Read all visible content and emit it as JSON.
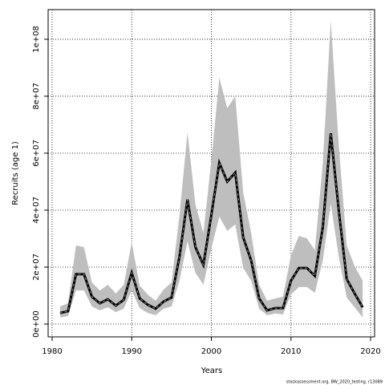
{
  "chart_data": {
    "type": "line",
    "xlabel": "Years",
    "ylabel": "Recruits (age 1)",
    "footnote": "stockassessment.org, BW_2020_testing, r13089",
    "x": [
      1981,
      1982,
      1983,
      1984,
      1985,
      1986,
      1987,
      1988,
      1989,
      1990,
      1991,
      1992,
      1993,
      1994,
      1995,
      1996,
      1997,
      1998,
      1999,
      2000,
      2001,
      2002,
      2003,
      2004,
      2005,
      2006,
      2007,
      2008,
      2009,
      2010,
      2011,
      2012,
      2013,
      2014,
      2015,
      2016,
      2017,
      2018,
      2019
    ],
    "values": [
      3900000,
      4500000,
      17500000,
      17500000,
      9600000,
      7300000,
      8700000,
      6500000,
      8500000,
      18000000,
      9000000,
      6800000,
      5400000,
      7900000,
      9300000,
      23700000,
      43700000,
      27000000,
      20800000,
      38300000,
      56600000,
      50000000,
      53200000,
      30400000,
      22300000,
      9000000,
      4800000,
      5600000,
      5600000,
      15200000,
      19700000,
      19700000,
      16900000,
      34000000,
      67000000,
      40000000,
      15800000,
      10700000,
      5900000
    ],
    "upper": [
      6200000,
      7300000,
      27600000,
      27000000,
      14600000,
      11800000,
      13800000,
      10700000,
      13800000,
      28700000,
      13500000,
      10400000,
      8200000,
      12100000,
      14600000,
      38300000,
      67300000,
      42000000,
      32000000,
      57500000,
      86500000,
      75800000,
      80000000,
      46200000,
      32000000,
      13800000,
      8200000,
      9000000,
      9600000,
      24200000,
      31000000,
      30100000,
      25900000,
      56600000,
      106500000,
      63000000,
      27600000,
      20300000,
      15200000
    ],
    "lower": [
      2300000,
      2800000,
      11800000,
      11800000,
      6200000,
      4800000,
      5900000,
      4200000,
      5400000,
      11800000,
      5600000,
      3900000,
      3100000,
      5400000,
      6200000,
      15200000,
      29000000,
      18000000,
      13800000,
      26500000,
      37700000,
      32700000,
      35000000,
      19700000,
      15200000,
      5400000,
      3100000,
      3700000,
      3400000,
      10400000,
      13000000,
      13000000,
      11000000,
      22300000,
      42300000,
      23700000,
      9300000,
      5900000,
      2300000
    ],
    "color": "#000000",
    "band_color": "#bebebe",
    "xlim": [
      1979.5,
      2020.5
    ],
    "xticks": [
      1980,
      1990,
      2000,
      2010,
      2020
    ],
    "ylim": [
      -4500000,
      110400000
    ],
    "yticks": [
      {
        "value": 0,
        "label": "0e+00"
      },
      {
        "value": 20000000,
        "label": "2e+07"
      },
      {
        "value": 40000000,
        "label": "4e+07"
      },
      {
        "value": 60000000,
        "label": "6e+07"
      },
      {
        "value": 80000000,
        "label": "8e+07"
      },
      {
        "value": 100000000,
        "label": "1e+08"
      }
    ],
    "grid": true
  }
}
